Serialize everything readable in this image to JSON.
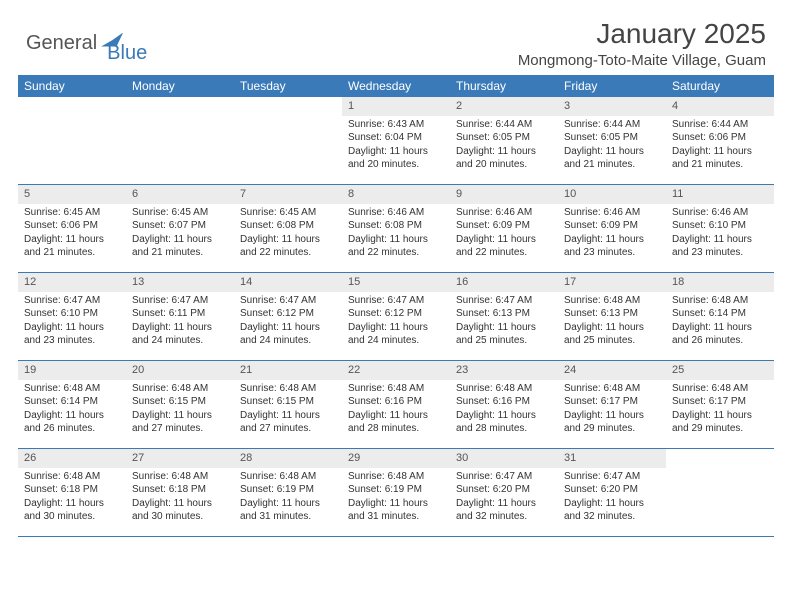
{
  "logo": {
    "text1": "General",
    "text2": "Blue"
  },
  "header": {
    "title": "January 2025",
    "location": "Mongmong-Toto-Maite Village, Guam"
  },
  "colors": {
    "accent": "#3b7ab8",
    "dayNumBg": "#ececec",
    "text": "#333333"
  },
  "dayNames": [
    "Sunday",
    "Monday",
    "Tuesday",
    "Wednesday",
    "Thursday",
    "Friday",
    "Saturday"
  ],
  "weeks": [
    [
      null,
      null,
      null,
      {
        "n": "1",
        "sr": "6:43 AM",
        "ss": "6:04 PM",
        "dl": "11 hours and 20 minutes."
      },
      {
        "n": "2",
        "sr": "6:44 AM",
        "ss": "6:05 PM",
        "dl": "11 hours and 20 minutes."
      },
      {
        "n": "3",
        "sr": "6:44 AM",
        "ss": "6:05 PM",
        "dl": "11 hours and 21 minutes."
      },
      {
        "n": "4",
        "sr": "6:44 AM",
        "ss": "6:06 PM",
        "dl": "11 hours and 21 minutes."
      }
    ],
    [
      {
        "n": "5",
        "sr": "6:45 AM",
        "ss": "6:06 PM",
        "dl": "11 hours and 21 minutes."
      },
      {
        "n": "6",
        "sr": "6:45 AM",
        "ss": "6:07 PM",
        "dl": "11 hours and 21 minutes."
      },
      {
        "n": "7",
        "sr": "6:45 AM",
        "ss": "6:08 PM",
        "dl": "11 hours and 22 minutes."
      },
      {
        "n": "8",
        "sr": "6:46 AM",
        "ss": "6:08 PM",
        "dl": "11 hours and 22 minutes."
      },
      {
        "n": "9",
        "sr": "6:46 AM",
        "ss": "6:09 PM",
        "dl": "11 hours and 22 minutes."
      },
      {
        "n": "10",
        "sr": "6:46 AM",
        "ss": "6:09 PM",
        "dl": "11 hours and 23 minutes."
      },
      {
        "n": "11",
        "sr": "6:46 AM",
        "ss": "6:10 PM",
        "dl": "11 hours and 23 minutes."
      }
    ],
    [
      {
        "n": "12",
        "sr": "6:47 AM",
        "ss": "6:10 PM",
        "dl": "11 hours and 23 minutes."
      },
      {
        "n": "13",
        "sr": "6:47 AM",
        "ss": "6:11 PM",
        "dl": "11 hours and 24 minutes."
      },
      {
        "n": "14",
        "sr": "6:47 AM",
        "ss": "6:12 PM",
        "dl": "11 hours and 24 minutes."
      },
      {
        "n": "15",
        "sr": "6:47 AM",
        "ss": "6:12 PM",
        "dl": "11 hours and 24 minutes."
      },
      {
        "n": "16",
        "sr": "6:47 AM",
        "ss": "6:13 PM",
        "dl": "11 hours and 25 minutes."
      },
      {
        "n": "17",
        "sr": "6:48 AM",
        "ss": "6:13 PM",
        "dl": "11 hours and 25 minutes."
      },
      {
        "n": "18",
        "sr": "6:48 AM",
        "ss": "6:14 PM",
        "dl": "11 hours and 26 minutes."
      }
    ],
    [
      {
        "n": "19",
        "sr": "6:48 AM",
        "ss": "6:14 PM",
        "dl": "11 hours and 26 minutes."
      },
      {
        "n": "20",
        "sr": "6:48 AM",
        "ss": "6:15 PM",
        "dl": "11 hours and 27 minutes."
      },
      {
        "n": "21",
        "sr": "6:48 AM",
        "ss": "6:15 PM",
        "dl": "11 hours and 27 minutes."
      },
      {
        "n": "22",
        "sr": "6:48 AM",
        "ss": "6:16 PM",
        "dl": "11 hours and 28 minutes."
      },
      {
        "n": "23",
        "sr": "6:48 AM",
        "ss": "6:16 PM",
        "dl": "11 hours and 28 minutes."
      },
      {
        "n": "24",
        "sr": "6:48 AM",
        "ss": "6:17 PM",
        "dl": "11 hours and 29 minutes."
      },
      {
        "n": "25",
        "sr": "6:48 AM",
        "ss": "6:17 PM",
        "dl": "11 hours and 29 minutes."
      }
    ],
    [
      {
        "n": "26",
        "sr": "6:48 AM",
        "ss": "6:18 PM",
        "dl": "11 hours and 30 minutes."
      },
      {
        "n": "27",
        "sr": "6:48 AM",
        "ss": "6:18 PM",
        "dl": "11 hours and 30 minutes."
      },
      {
        "n": "28",
        "sr": "6:48 AM",
        "ss": "6:19 PM",
        "dl": "11 hours and 31 minutes."
      },
      {
        "n": "29",
        "sr": "6:48 AM",
        "ss": "6:19 PM",
        "dl": "11 hours and 31 minutes."
      },
      {
        "n": "30",
        "sr": "6:47 AM",
        "ss": "6:20 PM",
        "dl": "11 hours and 32 minutes."
      },
      {
        "n": "31",
        "sr": "6:47 AM",
        "ss": "6:20 PM",
        "dl": "11 hours and 32 minutes."
      },
      null
    ]
  ],
  "labels": {
    "sunrise": "Sunrise:",
    "sunset": "Sunset:",
    "daylight": "Daylight:"
  }
}
